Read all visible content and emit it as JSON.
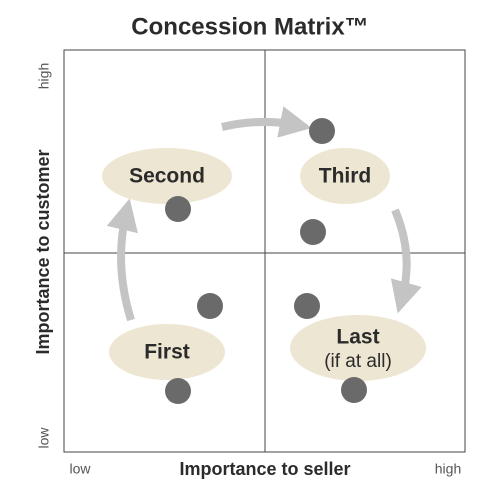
{
  "header": {
    "title": "Concession Matrix™"
  },
  "axes": {
    "y_label": "Importance to customer",
    "y_high": "high",
    "y_low": "low",
    "x_label": "Importance to seller",
    "x_low": "low",
    "x_high": "high"
  },
  "quadrants": {
    "top_left": "Second",
    "top_right": "Third",
    "bottom_left": "First",
    "bottom_right": {
      "label": "Last",
      "note": "(if at all)"
    }
  }
}
